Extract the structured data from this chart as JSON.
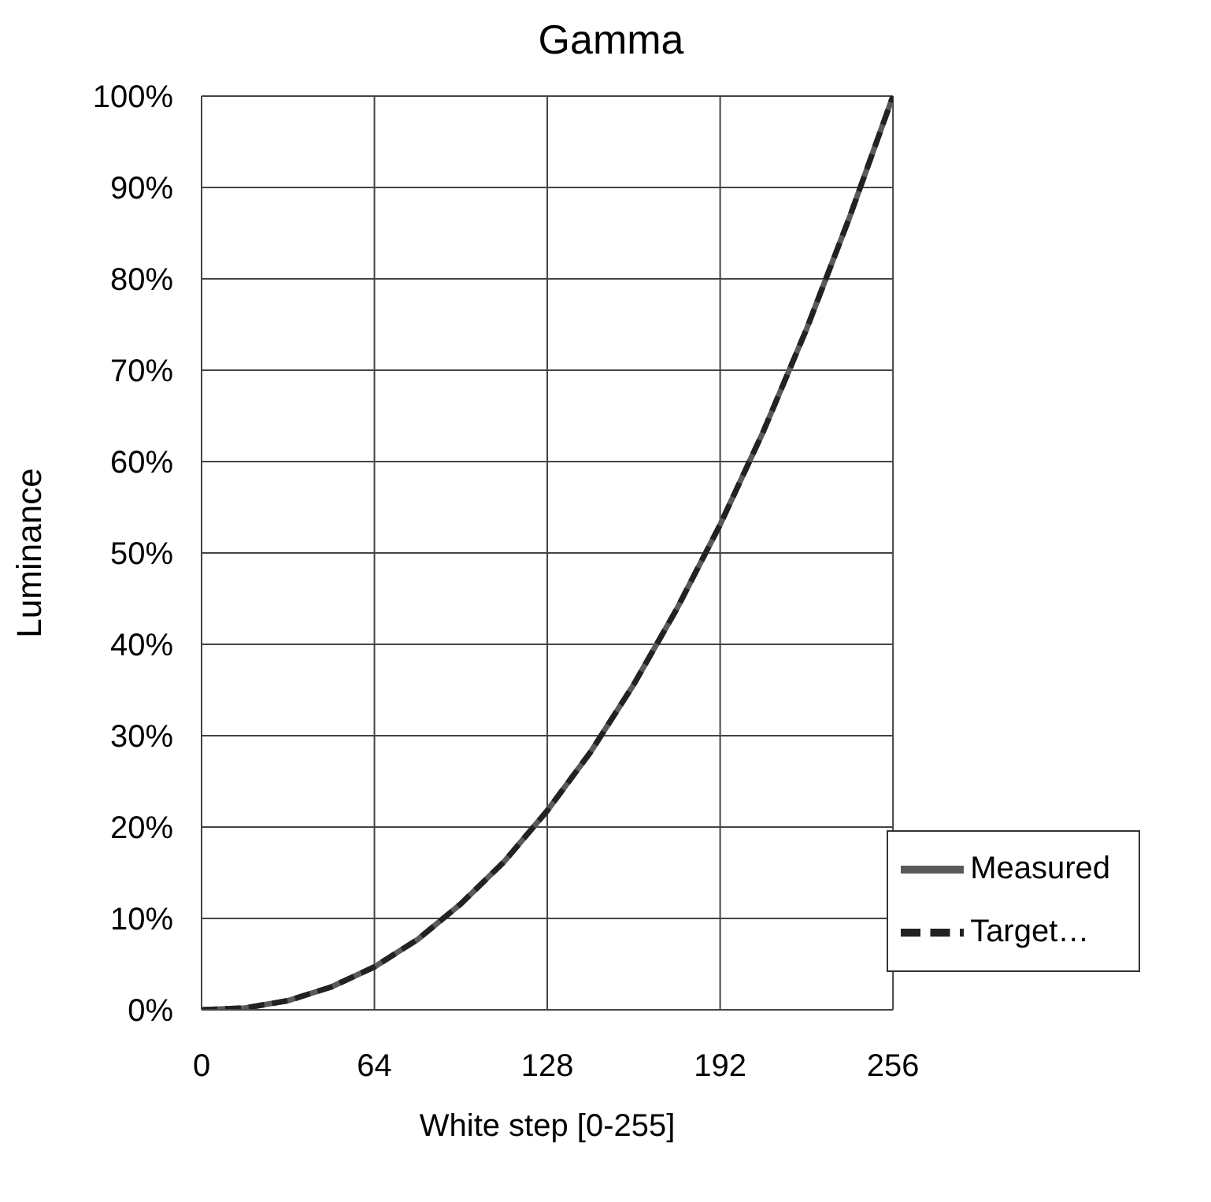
{
  "chart_data": {
    "type": "line",
    "title": "Gamma",
    "xlabel": "White step [0-255]",
    "ylabel": "Luminance",
    "x": [
      0,
      16,
      32,
      48,
      64,
      80,
      96,
      112,
      128,
      144,
      160,
      176,
      192,
      208,
      224,
      240,
      256
    ],
    "series": [
      {
        "name": "Measured",
        "color": "#5a5a5a",
        "line_style": "solid",
        "values": [
          0,
          0.2,
          1.0,
          2.5,
          4.7,
          7.7,
          11.6,
          16.2,
          21.8,
          28.2,
          35.6,
          43.9,
          53.1,
          63.3,
          74.5,
          86.8,
          100
        ]
      },
      {
        "name": "Target…",
        "color": "#222222",
        "line_style": "dashed",
        "values": [
          0,
          0.2,
          1.0,
          2.5,
          4.7,
          7.7,
          11.6,
          16.2,
          21.8,
          28.2,
          35.6,
          43.9,
          53.1,
          63.3,
          74.5,
          86.8,
          100
        ]
      }
    ],
    "xlim": [
      0,
      256
    ],
    "xticks": [
      0,
      64,
      128,
      192,
      256
    ],
    "ylim": [
      0,
      100
    ],
    "yticks": [
      {
        "value": 0,
        "label": "0%"
      },
      {
        "value": 10,
        "label": "10%"
      },
      {
        "value": 20,
        "label": "20%"
      },
      {
        "value": 30,
        "label": "30%"
      },
      {
        "value": 40,
        "label": "40%"
      },
      {
        "value": 50,
        "label": "50%"
      },
      {
        "value": 60,
        "label": "60%"
      },
      {
        "value": 70,
        "label": "70%"
      },
      {
        "value": 80,
        "label": "80%"
      },
      {
        "value": 90,
        "label": "90%"
      },
      {
        "value": 100,
        "label": "100%"
      }
    ],
    "grid": true,
    "legend": "bottom right",
    "marker": "none"
  }
}
